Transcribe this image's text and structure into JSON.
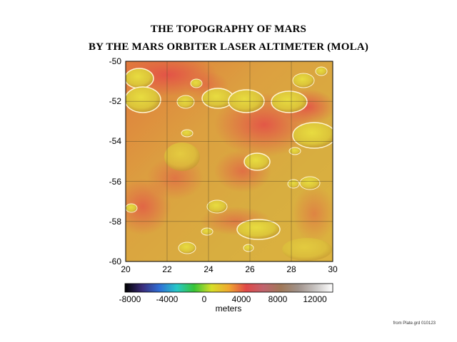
{
  "title_line1": "THE TOPOGRAPHY OF MARS",
  "title_line2": "BY THE MARS ORBITER LASER ALTIMETER (MOLA)",
  "map": {
    "lat_ticks": [
      "-50",
      "-52",
      "-54",
      "-56",
      "-58",
      "-60"
    ],
    "lon_ticks": [
      "20",
      "22",
      "24",
      "26",
      "28",
      "30"
    ],
    "lat_range": [
      -60,
      -50
    ],
    "lon_range": [
      20,
      30
    ]
  },
  "colorbar": {
    "ticks": [
      "-8000",
      "-4000",
      "0",
      "4000",
      "8000",
      "12000"
    ],
    "label": "meters",
    "colors": [
      "#000000",
      "#3a2c7a",
      "#2f6fd6",
      "#27c8c8",
      "#38c436",
      "#d8df28",
      "#f0a830",
      "#e04848",
      "#c0646e",
      "#a07858",
      "#a0928a",
      "#c8c4c2",
      "#ffffff"
    ]
  },
  "credit": "from Plate.grd 010123"
}
